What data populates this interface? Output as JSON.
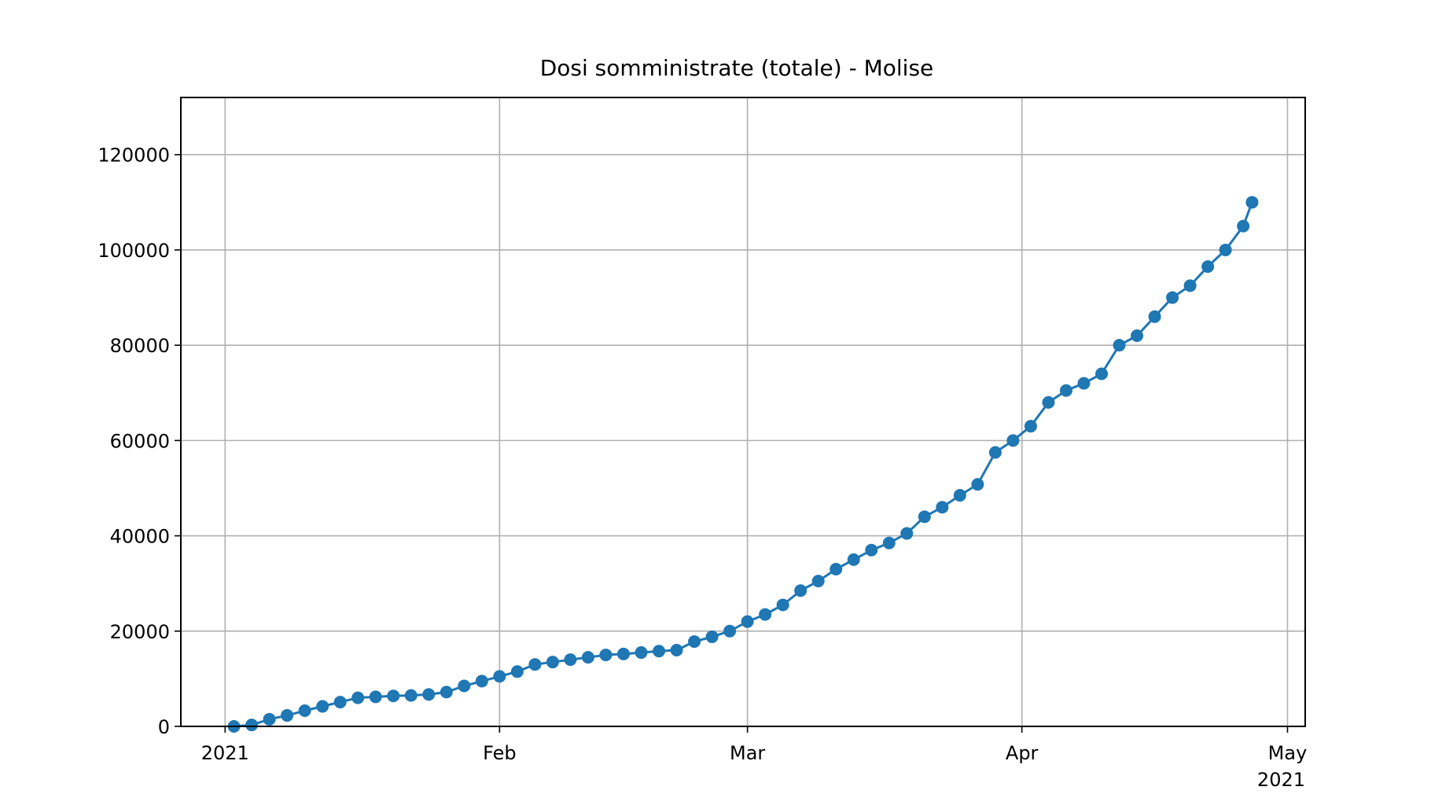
{
  "chart_data": {
    "type": "line",
    "title": "Dosi somministrate (totale) - Molise",
    "xlabel": "",
    "ylabel": "",
    "x_axis": "date",
    "xlim": [
      "2020-12-27",
      "2021-05-03"
    ],
    "ylim": [
      0,
      132000
    ],
    "grid": true,
    "color": "#1f77b4",
    "marker": "circle",
    "x_ticks": [
      {
        "date": "2021-01-01",
        "label": "2021"
      },
      {
        "date": "2021-02-01",
        "label": "Feb"
      },
      {
        "date": "2021-03-01",
        "label": "Mar"
      },
      {
        "date": "2021-04-01",
        "label": "Apr"
      },
      {
        "date": "2021-05-01",
        "label": "May"
      }
    ],
    "x_offset_label": "2021",
    "y_ticks": [
      0,
      20000,
      40000,
      60000,
      80000,
      100000,
      120000
    ],
    "series": [
      {
        "x": [
          "2021-01-02",
          "2021-01-04",
          "2021-01-06",
          "2021-01-08",
          "2021-01-10",
          "2021-01-12",
          "2021-01-14",
          "2021-01-16",
          "2021-01-18",
          "2021-01-20",
          "2021-01-22",
          "2021-01-24",
          "2021-01-26",
          "2021-01-28",
          "2021-01-30",
          "2021-02-01",
          "2021-02-03",
          "2021-02-05",
          "2021-02-07",
          "2021-02-09",
          "2021-02-11",
          "2021-02-13",
          "2021-02-15",
          "2021-02-17",
          "2021-02-19",
          "2021-02-21",
          "2021-02-23",
          "2021-02-25",
          "2021-02-27",
          "2021-03-01",
          "2021-03-03",
          "2021-03-05",
          "2021-03-07",
          "2021-03-09",
          "2021-03-11",
          "2021-03-13",
          "2021-03-15",
          "2021-03-17",
          "2021-03-19",
          "2021-03-21",
          "2021-03-23",
          "2021-03-25",
          "2021-03-27",
          "2021-03-29",
          "2021-03-31",
          "2021-04-02",
          "2021-04-04",
          "2021-04-06",
          "2021-04-08",
          "2021-04-10",
          "2021-04-12",
          "2021-04-14",
          "2021-04-16",
          "2021-04-18",
          "2021-04-20",
          "2021-04-22",
          "2021-04-24",
          "2021-04-26",
          "2021-04-27"
        ],
        "y": [
          0,
          300,
          1500,
          2300,
          3300,
          4200,
          5100,
          6000,
          6200,
          6400,
          6500,
          6700,
          7200,
          8500,
          9500,
          10500,
          11500,
          13000,
          13500,
          14000,
          14500,
          15000,
          15200,
          15500,
          15800,
          16000,
          17800,
          18800,
          20000,
          22000,
          23500,
          25500,
          28500,
          30500,
          33000,
          35000,
          37000,
          38500,
          40500,
          44000,
          46000,
          48500,
          50800,
          57500,
          60000,
          63000,
          68000,
          70500,
          72000,
          74000,
          80000,
          82000,
          86000,
          90000,
          92500,
          96500,
          100000,
          105000,
          110000
        ]
      }
    ]
  }
}
